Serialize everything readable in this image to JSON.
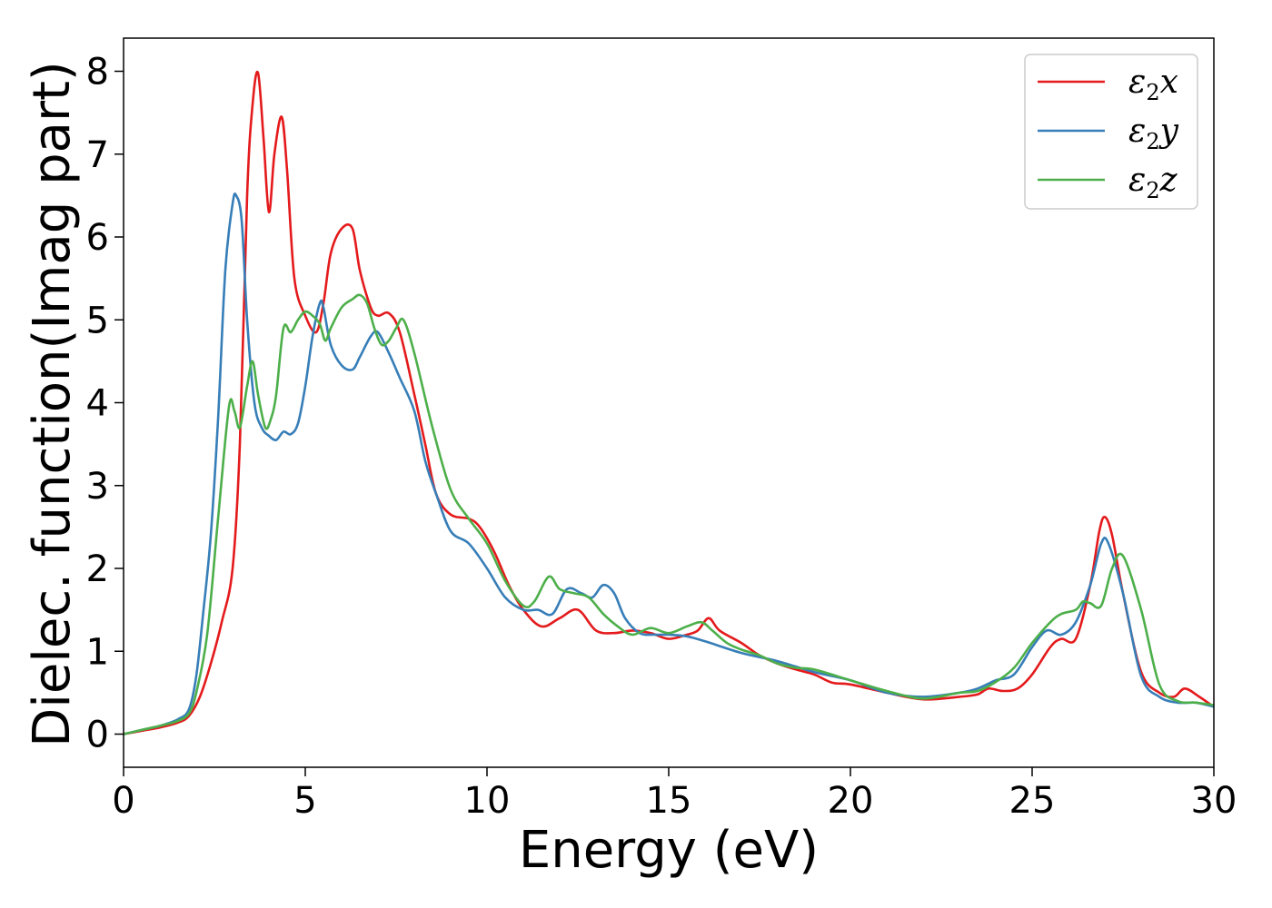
{
  "chart_data": {
    "type": "line",
    "xlabel": "Energy (eV)",
    "ylabel": "Dielec. function(Imag part)",
    "xlim": [
      0,
      30
    ],
    "ylim": [
      -0.4,
      8.4
    ],
    "xticks": [
      0,
      5,
      10,
      15,
      20,
      25,
      30
    ],
    "yticks": [
      0,
      1,
      2,
      3,
      4,
      5,
      6,
      7,
      8
    ],
    "grid": false,
    "legend_position": "top-right",
    "series": [
      {
        "name": "ε₂x",
        "legend_base": "ε",
        "legend_sub": "2",
        "legend_suffix": "x",
        "color": "#e41a1c",
        "x": [
          0,
          0.5,
          1,
          1.5,
          1.8,
          2.1,
          2.4,
          2.7,
          3.0,
          3.2,
          3.4,
          3.55,
          3.7,
          3.85,
          4.0,
          4.15,
          4.35,
          4.5,
          4.7,
          5.0,
          5.3,
          5.5,
          5.7,
          6.0,
          6.3,
          6.5,
          6.8,
          7.0,
          7.3,
          7.6,
          8.0,
          8.3,
          8.6,
          9.0,
          9.5,
          9.8,
          10.2,
          10.6,
          11.0,
          11.5,
          12.0,
          12.5,
          13.0,
          13.5,
          14.0,
          14.5,
          15.0,
          15.5,
          15.8,
          16.1,
          16.4,
          17.0,
          17.5,
          18.0,
          18.5,
          19.0,
          19.5,
          20.0,
          21.0,
          22.0,
          23.0,
          23.5,
          23.8,
          24.2,
          24.6,
          25.0,
          25.5,
          25.8,
          26.2,
          26.6,
          26.85,
          27.0,
          27.2,
          27.5,
          28.0,
          28.5,
          28.9,
          29.2,
          29.6,
          30.0
        ],
        "y": [
          0.0,
          0.04,
          0.08,
          0.14,
          0.22,
          0.45,
          0.85,
          1.35,
          2.0,
          3.5,
          6.5,
          7.6,
          7.98,
          7.2,
          6.3,
          7.0,
          7.45,
          6.8,
          5.5,
          5.05,
          4.85,
          5.2,
          5.8,
          6.1,
          6.1,
          5.6,
          5.15,
          5.05,
          5.08,
          4.85,
          4.1,
          3.5,
          2.9,
          2.65,
          2.6,
          2.5,
          2.2,
          1.8,
          1.5,
          1.3,
          1.4,
          1.5,
          1.25,
          1.22,
          1.25,
          1.22,
          1.15,
          1.2,
          1.25,
          1.4,
          1.25,
          1.1,
          0.95,
          0.85,
          0.78,
          0.72,
          0.62,
          0.6,
          0.5,
          0.42,
          0.45,
          0.48,
          0.55,
          0.52,
          0.55,
          0.72,
          1.05,
          1.15,
          1.15,
          1.8,
          2.45,
          2.62,
          2.4,
          1.7,
          0.75,
          0.5,
          0.45,
          0.55,
          0.45,
          0.33
        ]
      },
      {
        "name": "ε₂y",
        "legend_base": "ε",
        "legend_sub": "2",
        "legend_suffix": "y",
        "color": "#377eb8",
        "x": [
          0,
          0.5,
          1,
          1.5,
          1.8,
          2.0,
          2.2,
          2.4,
          2.6,
          2.8,
          3.0,
          3.1,
          3.25,
          3.4,
          3.6,
          3.8,
          4.0,
          4.2,
          4.4,
          4.6,
          4.8,
          5.0,
          5.2,
          5.4,
          5.5,
          5.7,
          6.0,
          6.3,
          6.5,
          6.8,
          7.0,
          7.3,
          7.6,
          8.0,
          8.3,
          8.6,
          9.0,
          9.5,
          10.0,
          10.5,
          11.0,
          11.4,
          11.8,
          12.2,
          12.6,
          12.9,
          13.2,
          13.5,
          13.8,
          14.2,
          14.6,
          15.0,
          15.5,
          16.0,
          17.0,
          18.0,
          19.0,
          20.0,
          21.0,
          22.0,
          23.0,
          23.5,
          24.0,
          24.5,
          25.0,
          25.4,
          25.8,
          26.2,
          26.6,
          26.9,
          27.1,
          27.5,
          28.0,
          28.5,
          29.0,
          29.5,
          30.0
        ],
        "y": [
          0.0,
          0.05,
          0.1,
          0.18,
          0.3,
          0.7,
          1.5,
          2.4,
          3.8,
          5.6,
          6.4,
          6.5,
          6.2,
          5.0,
          4.0,
          3.7,
          3.6,
          3.55,
          3.65,
          3.62,
          3.75,
          4.2,
          4.8,
          5.2,
          5.15,
          4.7,
          4.45,
          4.4,
          4.55,
          4.8,
          4.85,
          4.6,
          4.3,
          3.9,
          3.3,
          2.9,
          2.45,
          2.3,
          2.0,
          1.65,
          1.5,
          1.5,
          1.45,
          1.75,
          1.7,
          1.65,
          1.8,
          1.7,
          1.4,
          1.22,
          1.2,
          1.2,
          1.18,
          1.12,
          0.98,
          0.88,
          0.75,
          0.65,
          0.5,
          0.45,
          0.5,
          0.55,
          0.65,
          0.72,
          1.05,
          1.25,
          1.2,
          1.35,
          1.8,
          2.3,
          2.3,
          1.7,
          0.7,
          0.45,
          0.38,
          0.38,
          0.33
        ]
      },
      {
        "name": "ε₂z",
        "legend_base": "ε",
        "legend_sub": "2",
        "legend_suffix": "z",
        "color": "#4daf4a",
        "x": [
          0,
          0.5,
          1,
          1.5,
          1.8,
          2.0,
          2.3,
          2.6,
          2.9,
          3.05,
          3.2,
          3.4,
          3.55,
          3.7,
          3.9,
          4.05,
          4.2,
          4.4,
          4.6,
          4.8,
          5.0,
          5.2,
          5.4,
          5.55,
          5.7,
          6.0,
          6.3,
          6.5,
          6.7,
          6.9,
          7.1,
          7.3,
          7.5,
          7.7,
          8.0,
          8.5,
          9.0,
          9.5,
          10.0,
          10.5,
          11.0,
          11.3,
          11.7,
          12.0,
          12.4,
          12.8,
          13.2,
          13.6,
          14.0,
          14.5,
          15.0,
          15.5,
          15.9,
          16.2,
          16.6,
          17.0,
          17.5,
          18.0,
          18.5,
          19.0,
          20.0,
          21.0,
          22.0,
          23.0,
          23.5,
          24.0,
          24.5,
          25.0,
          25.5,
          25.8,
          26.2,
          26.4,
          26.6,
          26.9,
          27.2,
          27.5,
          28.0,
          28.5,
          29.0,
          29.5,
          30.0
        ],
        "y": [
          0.0,
          0.05,
          0.1,
          0.16,
          0.25,
          0.5,
          1.2,
          2.6,
          3.95,
          3.9,
          3.7,
          4.2,
          4.5,
          4.1,
          3.7,
          3.8,
          4.1,
          4.9,
          4.85,
          5.0,
          5.1,
          5.05,
          4.95,
          4.75,
          4.9,
          5.15,
          5.25,
          5.3,
          5.2,
          4.9,
          4.7,
          4.75,
          4.9,
          5.0,
          4.6,
          3.7,
          2.95,
          2.6,
          2.3,
          1.85,
          1.55,
          1.6,
          1.9,
          1.75,
          1.7,
          1.65,
          1.45,
          1.3,
          1.2,
          1.28,
          1.22,
          1.3,
          1.35,
          1.25,
          1.1,
          1.02,
          0.95,
          0.85,
          0.8,
          0.78,
          0.65,
          0.52,
          0.43,
          0.5,
          0.52,
          0.63,
          0.8,
          1.1,
          1.35,
          1.45,
          1.5,
          1.6,
          1.58,
          1.55,
          2.0,
          2.15,
          1.5,
          0.6,
          0.4,
          0.38,
          0.35
        ]
      }
    ]
  }
}
